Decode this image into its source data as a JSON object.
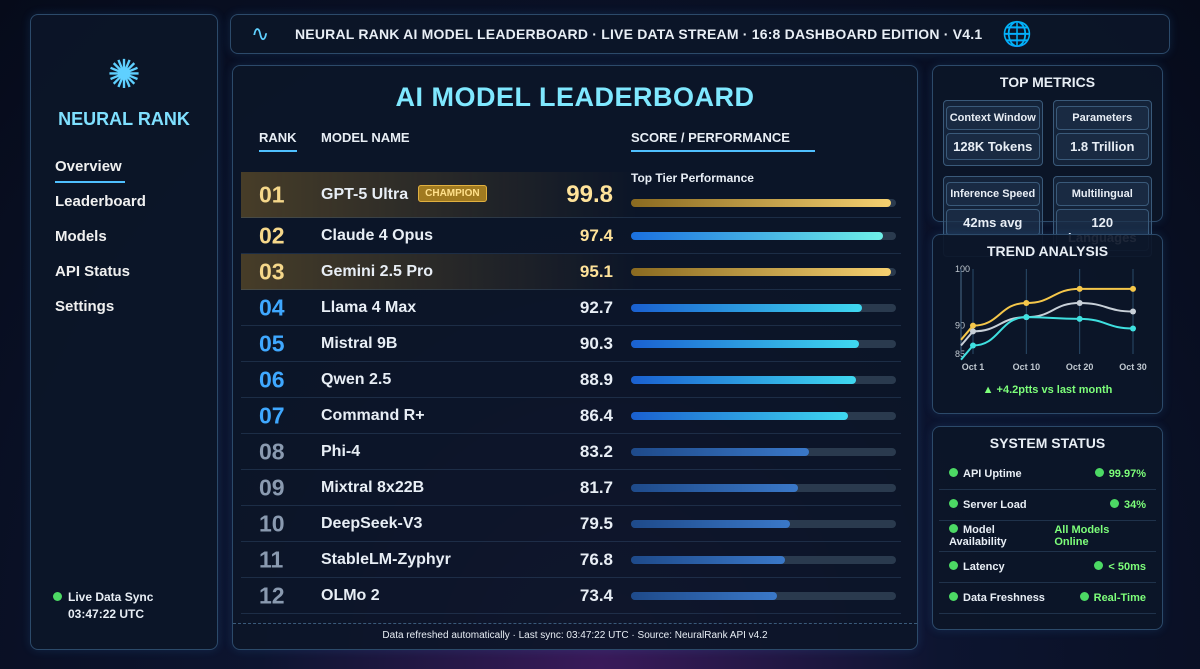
{
  "header": {
    "title": "NEURAL RANK AI MODEL LEADERBOARD · LIVE DATA STREAM · 16:8 DASHBOARD EDITION · V4.1"
  },
  "sidebar": {
    "brand": "NEURAL RANK",
    "items": [
      {
        "label": "Overview"
      },
      {
        "label": "Leaderboard"
      },
      {
        "label": "Models"
      },
      {
        "label": "API Status"
      },
      {
        "label": "Settings"
      }
    ],
    "sync_label": "Live Data Sync",
    "sync_time": "03:47:22 UTC"
  },
  "main": {
    "title": "AI MODEL LEADERBOARD",
    "col_rank": "RANK",
    "col_name": "MODEL NAME",
    "col_score": "SCORE / PERFORMANCE",
    "badge": "CHAMPION",
    "top_tier": "Top Tier Performance",
    "rows": [
      {
        "rank": "01",
        "name": "GPT-5 Ultra",
        "score": "99.8",
        "pct": 98,
        "tier": "gold"
      },
      {
        "rank": "02",
        "name": "Claude 4 Opus",
        "score": "97.4",
        "pct": 95,
        "tier": "cyan"
      },
      {
        "rank": "03",
        "name": "Gemini 2.5 Pro",
        "score": "95.1",
        "pct": 98,
        "tier": "gold"
      },
      {
        "rank": "04",
        "name": "Llama 4 Max",
        "score": "92.7",
        "pct": 87,
        "tier": "blue"
      },
      {
        "rank": "05",
        "name": "Mistral 9B",
        "score": "90.3",
        "pct": 86,
        "tier": "blue"
      },
      {
        "rank": "06",
        "name": "Qwen 2.5",
        "score": "88.9",
        "pct": 85,
        "tier": "blue"
      },
      {
        "rank": "07",
        "name": "Command R+",
        "score": "86.4",
        "pct": 82,
        "tier": "blue"
      },
      {
        "rank": "08",
        "name": "Phi-4",
        "score": "83.2",
        "pct": 67,
        "tier": "dim"
      },
      {
        "rank": "09",
        "name": "Mixtral 8x22B",
        "score": "81.7",
        "pct": 63,
        "tier": "dim"
      },
      {
        "rank": "10",
        "name": "DeepSeek-V3",
        "score": "79.5",
        "pct": 60,
        "tier": "dim"
      },
      {
        "rank": "11",
        "name": "StableLM-Zyphyr",
        "score": "76.8",
        "pct": 58,
        "tier": "dim"
      },
      {
        "rank": "12",
        "name": "OLMo 2",
        "score": "73.4",
        "pct": 55,
        "tier": "dim"
      }
    ],
    "footer": "Data refreshed automatically · Last sync: 03:47:22 UTC · Source: NeuralRank API v4.2"
  },
  "metrics": {
    "title": "TOP METRICS",
    "items": [
      {
        "label": "Context Window",
        "value": "128K Tokens"
      },
      {
        "label": "Parameters",
        "value": "1.8 Trillion"
      },
      {
        "label": "Inference Speed",
        "value": "42ms avg"
      },
      {
        "label": "Multilingual",
        "value": "120 Languages"
      }
    ]
  },
  "trend": {
    "title": "TREND ANALYSIS",
    "delta": "▲ +4.2ptts vs last month"
  },
  "chart_data": {
    "type": "line",
    "title": "TREND ANALYSIS",
    "categories": [
      "Oct 1",
      "Oct 10",
      "Oct 20",
      "Oct 30"
    ],
    "yticks": [
      "100",
      "90",
      "85"
    ],
    "ylim": [
      85,
      100
    ],
    "series": [
      {
        "name": "gold",
        "color": "#f5c74a",
        "values": [
          90,
          94,
          96.5,
          96.5
        ]
      },
      {
        "name": "silver",
        "color": "#c8d0d8",
        "values": [
          89,
          91.5,
          94,
          92.5
        ]
      },
      {
        "name": "cyan",
        "color": "#3fe0e0",
        "values": [
          86.5,
          91.5,
          91.2,
          89.5
        ]
      }
    ]
  },
  "status": {
    "title": "SYSTEM STATUS",
    "items": [
      {
        "label": "API Uptime",
        "value": "99.97%",
        "dot": true
      },
      {
        "label": "Server Load",
        "value": "34%",
        "dot": true
      },
      {
        "label": "Model Availability",
        "value": "All Models Online",
        "dot": false
      },
      {
        "label": "Latency",
        "value": "< 50ms",
        "dot": true
      },
      {
        "label": "Data Freshness",
        "value": "Real-Time",
        "dot": true
      }
    ]
  }
}
